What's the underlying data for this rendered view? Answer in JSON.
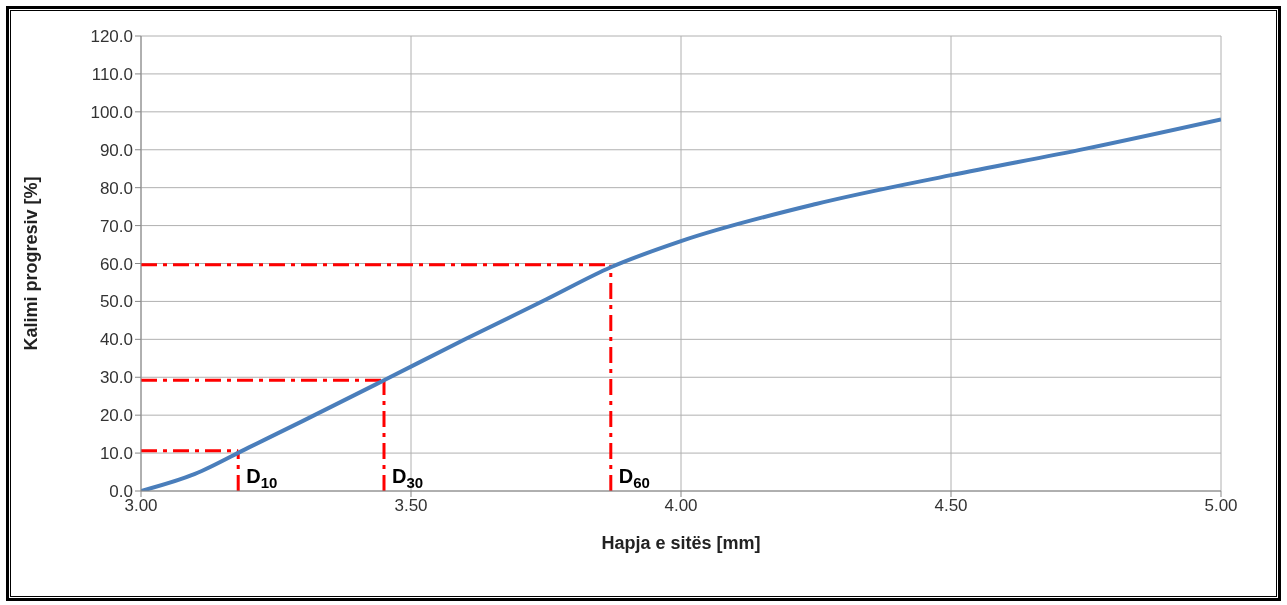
{
  "chart_data": {
    "type": "line",
    "xlabel": "Hapja e sitës [mm]",
    "ylabel": "Kalimi progresiv [%]",
    "x": [
      3.0,
      3.1,
      3.2,
      3.3,
      3.45,
      3.6,
      3.75,
      3.87,
      4.0,
      4.25,
      4.5,
      4.75,
      5.0
    ],
    "series": [
      {
        "color": "#4a7ebb",
        "values": [
          0,
          4.5,
          11.5,
          18.5,
          29.2,
          40.0,
          50.5,
          59.0,
          65.9,
          75.7,
          83.3,
          90.3,
          98.0
        ]
      }
    ],
    "xlim": [
      3.0,
      5.0
    ],
    "xticks": [
      {
        "value": 3.0,
        "label": "3.00"
      },
      {
        "value": 3.5,
        "label": "3.50"
      },
      {
        "value": 4.0,
        "label": "4.00"
      },
      {
        "value": 4.5,
        "label": "4.50"
      },
      {
        "value": 5.0,
        "label": "5.00"
      }
    ],
    "ylim": [
      0,
      120
    ],
    "yticks": [
      {
        "value": 0,
        "label": "0.0"
      },
      {
        "value": 10,
        "label": "10.0"
      },
      {
        "value": 20,
        "label": "20.0"
      },
      {
        "value": 30,
        "label": "30.0"
      },
      {
        "value": 40,
        "label": "40.0"
      },
      {
        "value": 50,
        "label": "50.0"
      },
      {
        "value": 60,
        "label": "60.0"
      },
      {
        "value": 70,
        "label": "70.0"
      },
      {
        "value": 80,
        "label": "80.0"
      },
      {
        "value": 90,
        "label": "90.0"
      },
      {
        "value": 100,
        "label": "100.0"
      },
      {
        "value": 110,
        "label": "110.0"
      },
      {
        "value": 120,
        "label": "120.0"
      }
    ],
    "ref_lines": [
      {
        "axis": "y",
        "value": 10.6,
        "label": null,
        "color": "#ff0000",
        "line_style": "dashdot"
      },
      {
        "axis": "y",
        "value": 29.2,
        "label": null,
        "color": "#ff0000",
        "line_style": "dashdot"
      },
      {
        "axis": "y",
        "value": 59.7,
        "label": null,
        "color": "#ff0000",
        "line_style": "dashdot"
      },
      {
        "axis": "x",
        "value": 3.18,
        "label": "D$_{10}$",
        "color": "#ff0000",
        "line_style": "dashdot"
      },
      {
        "axis": "x",
        "value": 3.45,
        "label": "D$_{30}$",
        "color": "#ff0000",
        "line_style": "dashdot"
      },
      {
        "axis": "x",
        "value": 3.87,
        "label": "D$_{60}$",
        "color": "#ff0000",
        "line_style": "dashdot"
      }
    ],
    "grid": true,
    "marker": "none",
    "line_style": "solid"
  }
}
